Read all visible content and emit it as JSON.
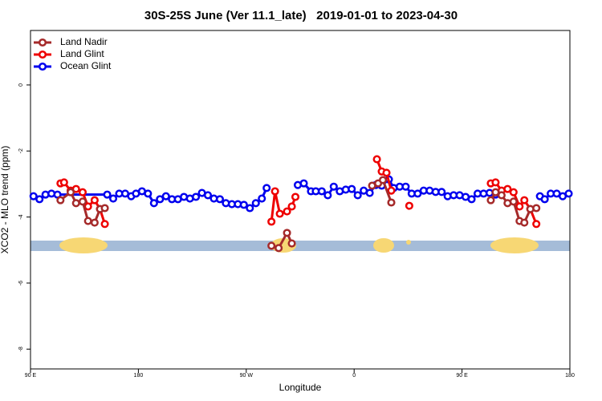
{
  "chart_data": {
    "type": "line",
    "title": "30S-25S June (Ver 11.1_late)   2019-01-01 to 2023-04-30",
    "x_label": "Longitude",
    "y_label": "XCO2 - MLO trend (ppm)",
    "xlim": [
      90,
      540
    ],
    "ylim": [
      -8.6,
      1.65
    ],
    "xticks": [
      {
        "value": 90,
        "label": "90 E"
      },
      180,
      {
        "value": 270,
        "label": "90 W"
      },
      {
        "value": 360,
        "label": "0"
      },
      {
        "value": 450,
        "label": "90 E"
      },
      {
        "value": 540,
        "label": "180"
      }
    ],
    "yticks": [
      0,
      -2,
      -4,
      -6,
      -8
    ],
    "legend": "top-left",
    "series": [
      {
        "name": "Land Nadir",
        "color": "#a52a2a",
        "x": [
          115,
          123.5,
          128,
          133.5,
          138,
          143.5,
          148,
          152,
          null,
          291,
          297,
          304,
          308,
          null,
          375,
          380,
          384,
          391,
          null,
          474,
          478,
          483,
          488,
          493,
          498,
          502,
          507,
          512
        ],
        "values": [
          -3.49,
          -3.25,
          -3.58,
          -3.53,
          -4.12,
          -4.17,
          -3.76,
          -3.73,
          null,
          -4.87,
          -4.94,
          -4.48,
          -4.8,
          null,
          -3.05,
          -2.98,
          -2.88,
          -3.56,
          null,
          -3.49,
          -3.25,
          -3.34,
          -3.58,
          -3.53,
          -4.12,
          -4.17,
          -3.76,
          -3.73
        ]
      },
      {
        "name": "Land Glint",
        "color": "#ee0000",
        "x": [
          115,
          118,
          123.5,
          128,
          133.5,
          138,
          143.5,
          148,
          152,
          null,
          291,
          294,
          298,
          304,
          308,
          311,
          null,
          379,
          383,
          387,
          391,
          null,
          406,
          null,
          474,
          478,
          483,
          488,
          493,
          498,
          502,
          507,
          512
        ],
        "values": [
          -2.98,
          -2.95,
          -3.2,
          -3.15,
          -3.25,
          -3.68,
          -3.49,
          -3.76,
          -4.21,
          null,
          -4.14,
          -3.22,
          -3.9,
          -3.83,
          -3.68,
          -3.39,
          null,
          -2.25,
          -2.62,
          -2.66,
          -3.2,
          null,
          -3.66,
          null,
          -2.98,
          -2.95,
          -3.2,
          -3.15,
          -3.25,
          -3.68,
          -3.49,
          -3.76,
          -4.21
        ]
      },
      {
        "name": "Ocean Glint",
        "color": "#0000ee",
        "x": [
          92.5,
          97.5,
          102.5,
          107.5,
          112.5,
          154,
          159,
          164,
          169,
          174,
          178,
          183,
          188,
          193,
          198,
          203,
          208,
          213,
          218,
          223,
          228,
          233,
          238,
          243,
          248,
          253,
          258,
          263,
          268,
          273,
          278,
          283,
          287,
          null,
          313,
          318,
          324,
          328,
          333,
          338,
          343,
          348,
          353,
          358,
          363,
          368,
          373,
          378,
          383,
          389,
          393,
          398,
          403,
          408,
          413,
          418,
          423,
          428,
          433,
          438,
          443,
          448,
          453,
          458,
          463,
          468,
          473,
          478,
          null,
          515,
          519,
          524,
          529,
          534,
          539
        ],
        "values": [
          -3.37,
          -3.46,
          -3.32,
          -3.29,
          -3.32,
          -3.32,
          -3.44,
          -3.29,
          -3.29,
          -3.37,
          -3.29,
          -3.22,
          -3.29,
          -3.58,
          -3.46,
          -3.37,
          -3.46,
          -3.46,
          -3.39,
          -3.44,
          -3.39,
          -3.27,
          -3.34,
          -3.44,
          -3.46,
          -3.58,
          -3.61,
          -3.61,
          -3.63,
          -3.73,
          -3.58,
          -3.44,
          -3.12,
          null,
          -3.03,
          -2.98,
          -3.22,
          -3.22,
          -3.22,
          -3.34,
          -3.08,
          -3.22,
          -3.17,
          -3.15,
          -3.34,
          -3.2,
          -3.27,
          -3.03,
          -3.05,
          -2.86,
          -3.12,
          -3.08,
          -3.08,
          -3.29,
          -3.29,
          -3.2,
          -3.2,
          -3.24,
          -3.24,
          -3.37,
          -3.34,
          -3.34,
          -3.39,
          -3.46,
          -3.29,
          -3.29,
          -3.27,
          -3.32,
          null,
          -3.37,
          -3.46,
          -3.29,
          -3.29,
          -3.37,
          -3.29
        ]
      }
    ]
  }
}
